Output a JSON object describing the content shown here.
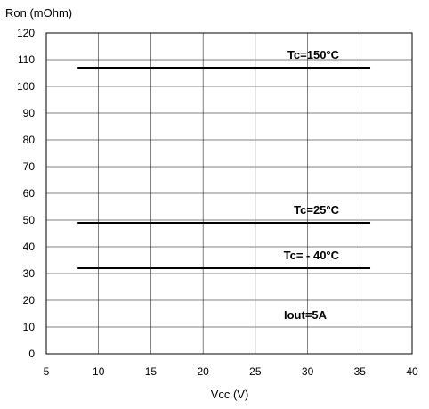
{
  "chart_data": {
    "type": "line",
    "title": "",
    "xlabel": "Vcc (V)",
    "ylabel": "Ron (mOhm)",
    "xlim": [
      5,
      40
    ],
    "ylim": [
      0,
      120
    ],
    "xticks": [
      5,
      10,
      15,
      20,
      25,
      30,
      35,
      40
    ],
    "yticks": [
      0,
      10,
      20,
      30,
      40,
      50,
      60,
      70,
      80,
      90,
      100,
      110,
      120
    ],
    "grid": true,
    "legend": "none",
    "series": [
      {
        "name": "Tc=150°C",
        "x": [
          8,
          36
        ],
        "y": [
          107,
          107
        ]
      },
      {
        "name": "Tc=25°C",
        "x": [
          8,
          36
        ],
        "y": [
          49,
          49
        ]
      },
      {
        "name": "Tc= - 40°C",
        "x": [
          8,
          36
        ],
        "y": [
          32,
          32
        ]
      }
    ],
    "annotations": [
      {
        "text": "Iout=5A"
      }
    ],
    "colors": {
      "line": "#000000",
      "grid": "#000000"
    }
  }
}
